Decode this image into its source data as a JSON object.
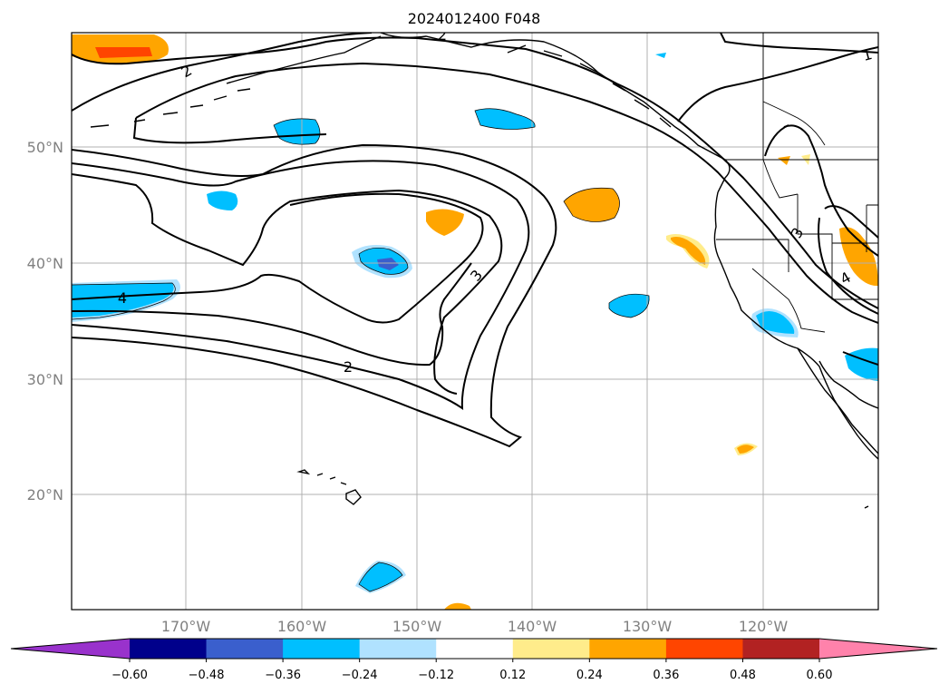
{
  "title": "2024012400 F048",
  "map": {
    "lat_labels": [
      "50°N",
      "40°N",
      "30°N",
      "20°N"
    ],
    "lon_labels": [
      "170°W",
      "160°W",
      "150°W",
      "140°W",
      "130°W",
      "120°W"
    ],
    "contour_labels": [
      "2",
      "2",
      "3",
      "4",
      "1",
      "2",
      "3",
      "4"
    ]
  },
  "colorbar": {
    "ticks": [
      "−0.60",
      "−0.48",
      "−0.36",
      "−0.24",
      "−0.12",
      "0.12",
      "0.24",
      "0.36",
      "0.48",
      "0.60"
    ],
    "colors": [
      "#9932cc",
      "#00008b",
      "#3a5fcd",
      "#00bfff",
      "#b0e2ff",
      "#ffffff",
      "#ffec8b",
      "#ffa500",
      "#ff4500",
      "#b22222",
      "#ff82ab"
    ]
  },
  "colors": {
    "neg_strong": "#3a5fcd",
    "neg_mid": "#00bfff",
    "neg_weak": "#b0e2ff",
    "pos_weak": "#ffec8b",
    "pos_mid": "#ffa500",
    "pos_strong": "#ff4500",
    "grid": "#b0b0b0"
  }
}
